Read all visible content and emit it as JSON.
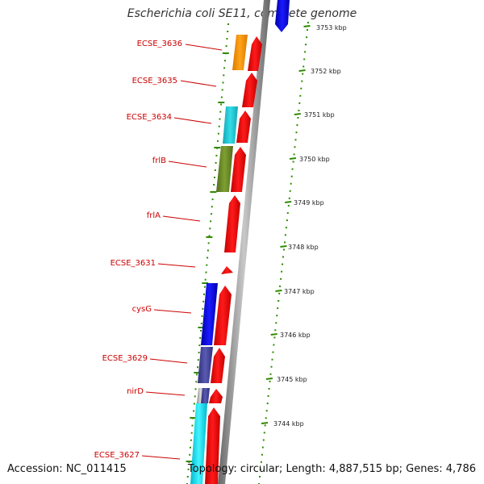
{
  "title": "Escherichia coli SE11, complete genome",
  "footer": {
    "accession": "Accession: NC_011415",
    "topology": "Topology: circular; Length: 4,887,515 bp; Genes: 4,786"
  },
  "colors": {
    "gene_label": "#cc0000",
    "cds_red": "#ff0000",
    "backbone": "#8c8c8c",
    "dot_ring": "#2e8b00",
    "blue": "#0000ee",
    "orange": "#ff9900",
    "teal": "#22ccdd",
    "olive": "#6b8e23",
    "slate": "#4b4b9b",
    "gray": "#aaaaaa",
    "cyan": "#00eeff"
  },
  "gene_labels": [
    "ECSE_3636",
    "ECSE_3635",
    "ECSE_3634",
    "frlB",
    "frlA",
    "ECSE_3631",
    "cysG",
    "ECSE_3629",
    "nirD",
    "ECSE_3627"
  ],
  "scale_labels": [
    "3753 kbp",
    "3752 kbp",
    "3751 kbp",
    "3750 kbp",
    "3749 kbp",
    "3748 kbp",
    "3747 kbp",
    "3746 kbp",
    "3745 kbp",
    "3744 kbp"
  ]
}
